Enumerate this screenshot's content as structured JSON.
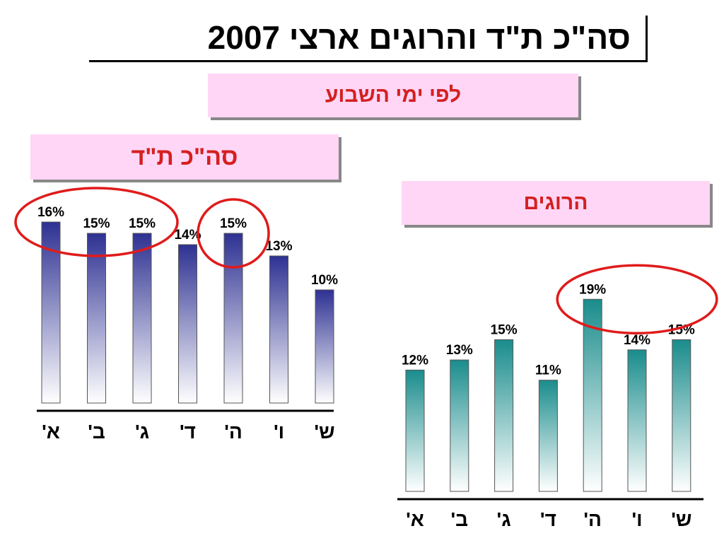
{
  "title": "סה\"כ ת\"ד והרוגים ארצי 2007",
  "subtitle": "לפי ימי השבוע",
  "chart_data": [
    {
      "type": "bar",
      "title": "סה\"כ ת\"ד",
      "categories": [
        "א'",
        "ב'",
        "ג'",
        "ד'",
        "ה'",
        "ו'",
        "ש'"
      ],
      "values": [
        16,
        15,
        15,
        14,
        15,
        13,
        10
      ],
      "value_labels": [
        "16%",
        "15%",
        "15%",
        "14%",
        "15%",
        "13%",
        "10%"
      ],
      "unit": "%",
      "ylim": [
        0,
        16
      ],
      "grid": false,
      "legend": "none",
      "bar_color": "#2e3192",
      "highlighted_categories": [
        [
          "א'",
          "ב'",
          "ג'"
        ],
        [
          "ה'"
        ]
      ]
    },
    {
      "type": "bar",
      "title": "הרוגים",
      "categories": [
        "א'",
        "ב'",
        "ג'",
        "ד'",
        "ה'",
        "ו'",
        "ש'"
      ],
      "values": [
        12,
        13,
        15,
        11,
        19,
        14,
        15
      ],
      "value_labels": [
        "12%",
        "13%",
        "15%",
        "11%",
        "19%",
        "14%",
        "15%"
      ],
      "unit": "%",
      "ylim": [
        0,
        19
      ],
      "grid": false,
      "legend": "none",
      "bar_color": "#1a8c8c",
      "highlighted_categories": [
        [
          "ה'",
          "ו'",
          "ש'"
        ]
      ]
    }
  ],
  "colors": {
    "highlight_ring": "#e01b1b",
    "panel_title_text": "#d42020",
    "panel_title_bg": "#ffd6f6"
  }
}
